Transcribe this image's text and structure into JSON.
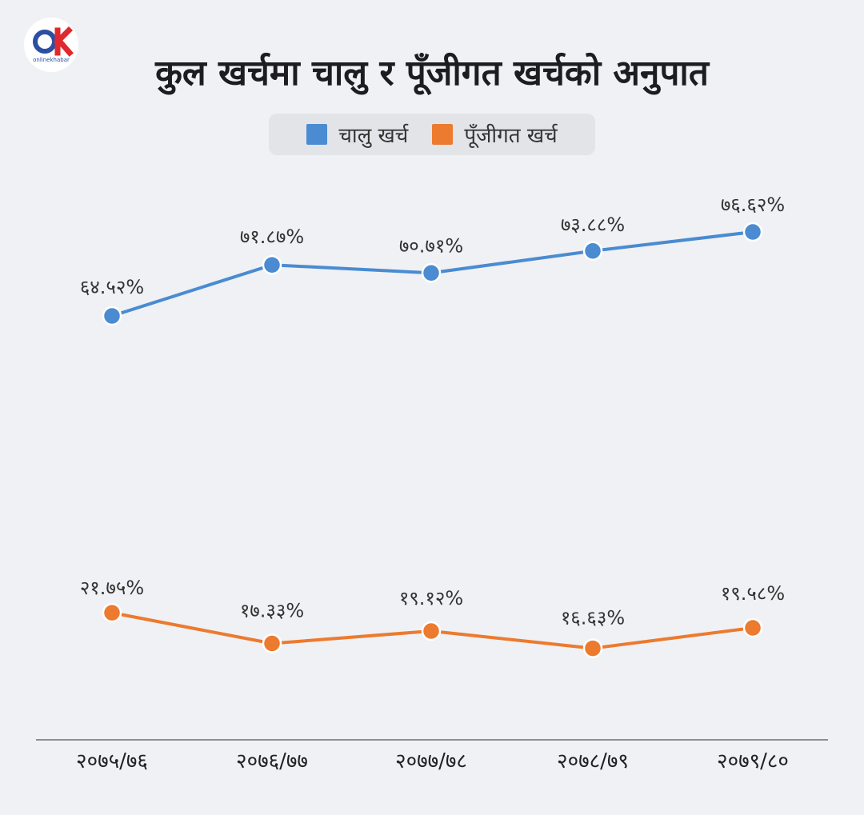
{
  "logo": {
    "brand_text": "onlinekhabar",
    "letters": "OK"
  },
  "title": "कुल खर्चमा चालु र पूँजीगत खर्चको अनुपात",
  "legend": [
    {
      "label": "चालु खर्च",
      "color": "#4a8bd1"
    },
    {
      "label": "पूँजीगत खर्च",
      "color": "#ec7a2f"
    }
  ],
  "chart_data": {
    "type": "line",
    "categories": [
      "२०७५/७६",
      "२०७६/७७",
      "२०७७/७८",
      "२०७८/७९",
      "२०७९/८०"
    ],
    "series": [
      {
        "name": "चालु खर्च",
        "color": "#4a8bd1",
        "values": [
          64.52,
          71.87,
          70.71,
          73.88,
          76.62
        ],
        "labels": [
          "६४.५२%",
          "७१.८७%",
          "७०.७१%",
          "७३.८८%",
          "७६.६२%"
        ]
      },
      {
        "name": "पूँजीगत खर्च",
        "color": "#ec7a2f",
        "values": [
          21.75,
          17.33,
          19.12,
          16.63,
          19.58
        ],
        "labels": [
          "२१.७५%",
          "१७.३३%",
          "१९.१२%",
          "१६.६३%",
          "१९.५८%"
        ]
      }
    ],
    "xlabel": "",
    "ylabel": "",
    "grid": false,
    "legend_position": "top-center"
  }
}
